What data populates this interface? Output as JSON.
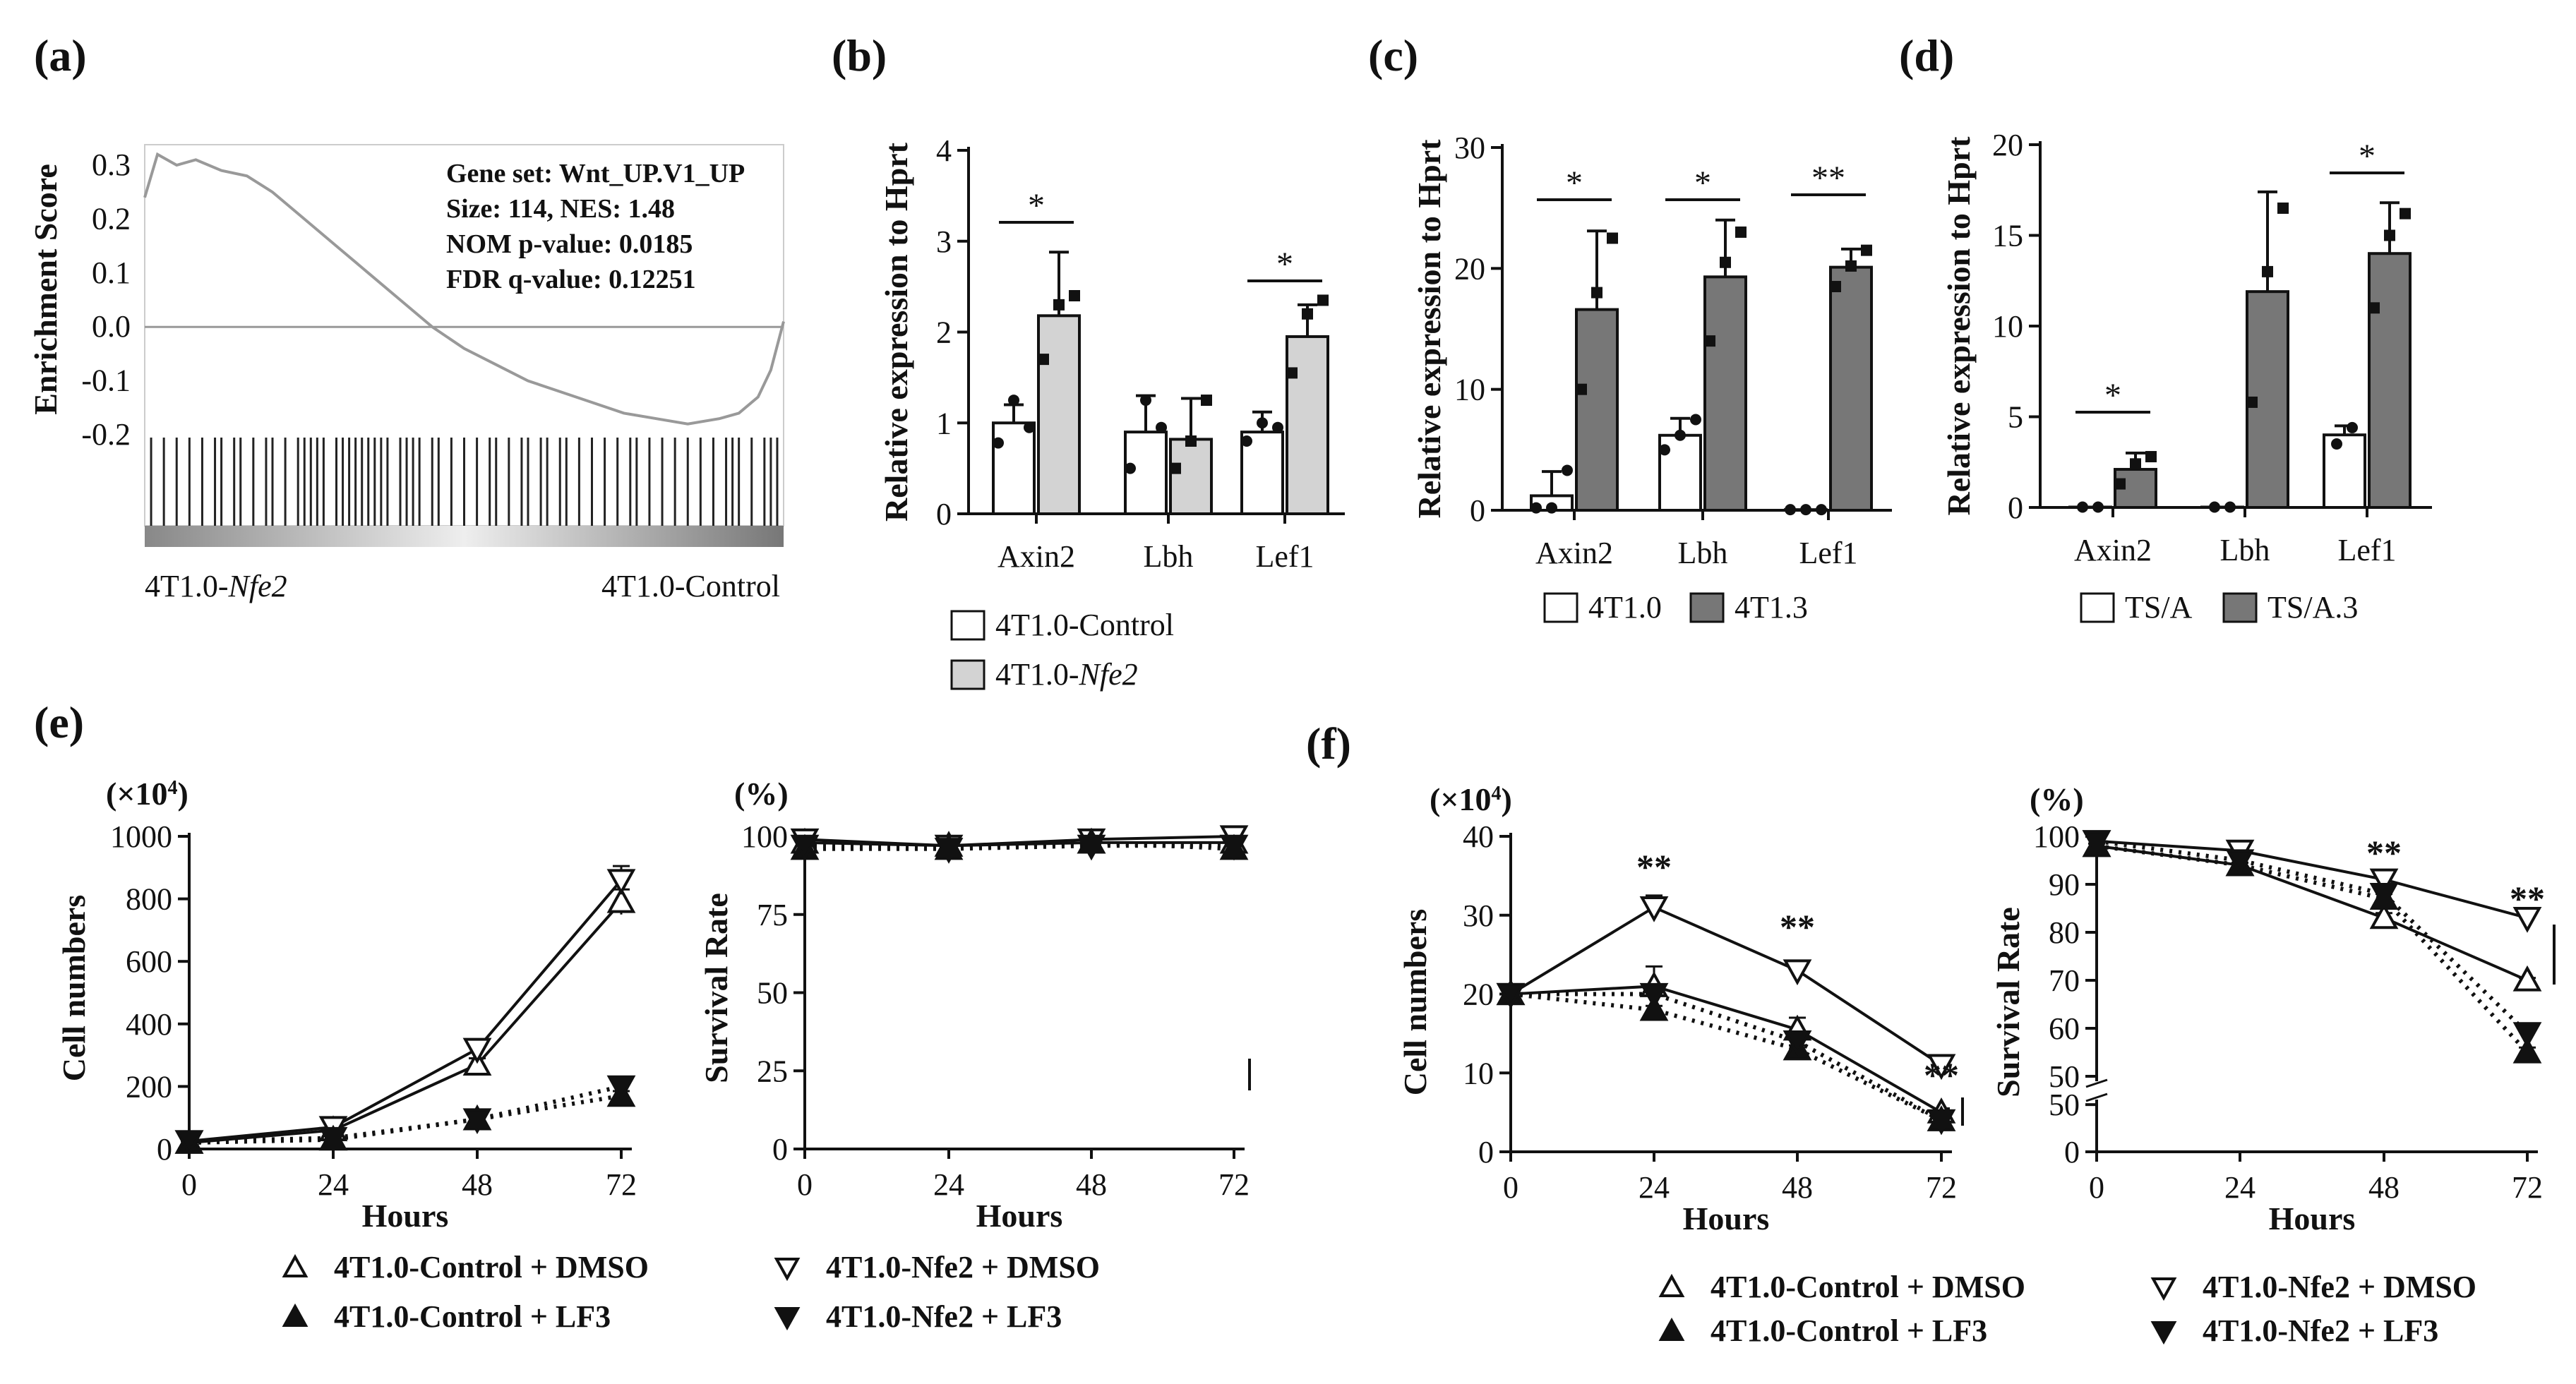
{
  "panels": {
    "a": "(a)",
    "b": "(b)",
    "c": "(c)",
    "d": "(d)",
    "e": "(e)",
    "f": "(f)"
  },
  "chart_data": [
    {
      "panel": "(a)",
      "type": "line",
      "ylabel": "Enrichment Score",
      "yticks": [
        "0.3",
        "0.2",
        "0.1",
        "0.0",
        "-0.1",
        "-0.2"
      ],
      "ylim": [
        -0.2,
        0.33
      ],
      "annotations": [
        "Gene set: Wnt_UP.V1_UP",
        "Size: 114, NES: 1.48",
        "NOM p-value: 0.0185",
        "FDR q-value: 0.12251"
      ],
      "left_label_prefix": "4T1.0-",
      "left_label_italic": "Nfe2",
      "right_label": "4T1.0-Control",
      "x": [
        0,
        0.02,
        0.05,
        0.08,
        0.12,
        0.16,
        0.2,
        0.25,
        0.3,
        0.35,
        0.4,
        0.45,
        0.5,
        0.55,
        0.6,
        0.65,
        0.7,
        0.75,
        0.8,
        0.85,
        0.9,
        0.93,
        0.96,
        0.98,
        1.0
      ],
      "y": [
        0.24,
        0.32,
        0.3,
        0.31,
        0.29,
        0.28,
        0.25,
        0.2,
        0.15,
        0.1,
        0.05,
        0.0,
        -0.04,
        -0.07,
        -0.1,
        -0.12,
        -0.14,
        -0.16,
        -0.17,
        -0.18,
        -0.17,
        -0.16,
        -0.13,
        -0.08,
        0.01
      ],
      "hits": [
        0.01,
        0.03,
        0.05,
        0.07,
        0.09,
        0.11,
        0.12,
        0.14,
        0.15,
        0.17,
        0.19,
        0.2,
        0.22,
        0.24,
        0.25,
        0.26,
        0.27,
        0.28,
        0.3,
        0.31,
        0.32,
        0.33,
        0.34,
        0.35,
        0.36,
        0.37,
        0.38,
        0.4,
        0.41,
        0.42,
        0.43,
        0.45,
        0.46,
        0.48,
        0.5,
        0.52,
        0.54,
        0.55,
        0.57,
        0.59,
        0.6,
        0.62,
        0.63,
        0.65,
        0.66,
        0.68,
        0.7,
        0.72,
        0.74,
        0.76,
        0.77,
        0.79,
        0.81,
        0.83,
        0.85,
        0.87,
        0.89,
        0.91,
        0.92,
        0.93,
        0.95,
        0.97,
        0.98,
        0.99
      ]
    },
    {
      "panel": "(b)",
      "type": "bar",
      "ylabel": "Relative expression to Hprt",
      "ylim": [
        0,
        4
      ],
      "yticks": [
        "0",
        "1",
        "2",
        "3",
        "4"
      ],
      "categories": [
        "Axin2",
        "Lbh",
        "Lef1"
      ],
      "series": [
        {
          "name": "4T1.0-Control",
          "values": [
            1.0,
            0.9,
            0.9
          ],
          "errors": [
            0.2,
            0.4,
            0.22
          ],
          "points": [
            [
              0.78,
              1.25,
              0.95
            ],
            [
              0.5,
              1.25,
              0.95
            ],
            [
              0.8,
              1.0,
              0.95
            ]
          ]
        },
        {
          "name": "4T1.0-",
          "name_italic": "Nfe2",
          "values": [
            2.18,
            0.82,
            1.95
          ],
          "errors": [
            0.7,
            0.45,
            0.35
          ],
          "points": [
            [
              1.7,
              2.3,
              2.4
            ],
            [
              0.5,
              0.8,
              1.25
            ],
            [
              1.55,
              2.2,
              2.35
            ]
          ]
        }
      ],
      "significance": [
        {
          "category": "Axin2",
          "label": "*"
        },
        {
          "category": "Lef1",
          "label": "*"
        }
      ]
    },
    {
      "panel": "(c)",
      "type": "bar",
      "ylabel": "Relative expression to Hprt",
      "ylim": [
        0,
        30
      ],
      "yticks": [
        "0",
        "10",
        "20",
        "30"
      ],
      "categories": [
        "Axin2",
        "Lbh",
        "Lef1"
      ],
      "series": [
        {
          "name": "4T1.0",
          "values": [
            1.2,
            6.2,
            0.05
          ],
          "errors": [
            2.0,
            1.4,
            0
          ],
          "points": [
            [
              0.2,
              0.2,
              3.3
            ],
            [
              5.0,
              6.2,
              7.5
            ],
            [
              0.05,
              0.05,
              0.05
            ]
          ]
        },
        {
          "name": "4T1.3",
          "values": [
            16.6,
            19.3,
            20.1
          ],
          "errors": [
            6.5,
            4.7,
            1.5
          ],
          "points": [
            [
              10.0,
              18.0,
              22.5
            ],
            [
              14.0,
              20.5,
              23.0
            ],
            [
              18.5,
              20.2,
              21.5
            ]
          ]
        }
      ],
      "significance": [
        {
          "category": "Axin2",
          "label": "*"
        },
        {
          "category": "Lbh",
          "label": "*"
        },
        {
          "category": "Lef1",
          "label": "**"
        }
      ]
    },
    {
      "panel": "(d)",
      "type": "bar",
      "ylabel": "Relative expression to Hprt",
      "ylim": [
        0,
        20
      ],
      "yticks": [
        "0",
        "5",
        "10",
        "15",
        "20"
      ],
      "categories": [
        "Axin2",
        "Lbh",
        "Lef1"
      ],
      "series": [
        {
          "name": "TS/A",
          "values": [
            0.02,
            0.02,
            4.0
          ],
          "errors": [
            0,
            0,
            0.5
          ],
          "points": [
            [
              0.02,
              0.02
            ],
            [
              0.02,
              0.02
            ],
            [
              3.5,
              4.4
            ]
          ]
        },
        {
          "name": "TS/A.3",
          "values": [
            2.1,
            11.9,
            14.0
          ],
          "errors": [
            0.9,
            5.5,
            2.8
          ],
          "points": [
            [
              1.3,
              2.4,
              2.8
            ],
            [
              5.8,
              13.0,
              16.5
            ],
            [
              11.0,
              15.0,
              16.2
            ]
          ]
        }
      ],
      "significance": [
        {
          "category": "Axin2",
          "label": "*"
        },
        {
          "category": "Lef1",
          "label": "*"
        }
      ]
    },
    {
      "panel": "(e) left",
      "type": "line",
      "ylabel": "Cell numbers",
      "yunit": "(×10",
      "yunit_exp": "4",
      "yunit_close": ")",
      "xlabel": "Hours",
      "x": [
        0,
        24,
        48,
        72
      ],
      "ylim": [
        0,
        1000
      ],
      "yticks": [
        "0",
        "200",
        "400",
        "600",
        "800",
        "1000"
      ],
      "xticks": [
        "0",
        "24",
        "48",
        "72"
      ],
      "series": [
        {
          "name": "4T1.0-Control + DMSO",
          "values": [
            20,
            60,
            270,
            790
          ],
          "errors": [
            5,
            10,
            20,
            40
          ]
        },
        {
          "name": "4T1.0-Nfe2 + DMSO",
          "values": [
            25,
            70,
            320,
            860
          ],
          "errors": [
            5,
            10,
            25,
            45
          ]
        },
        {
          "name": "4T1.0-Control + LF3",
          "values": [
            20,
            30,
            95,
            170
          ],
          "errors": [
            5,
            5,
            10,
            15
          ]
        },
        {
          "name": "4T1.0-Nfe2 + LF3",
          "values": [
            25,
            35,
            95,
            200
          ],
          "errors": [
            5,
            5,
            10,
            15
          ]
        }
      ]
    },
    {
      "panel": "(e) right",
      "type": "line",
      "ylabel": "Survival Rate",
      "yunit": "(%)",
      "xlabel": "Hours",
      "x": [
        0,
        24,
        48,
        72
      ],
      "ylim": [
        0,
        100
      ],
      "yticks": [
        "0",
        "25",
        "50",
        "75",
        "100"
      ],
      "xticks": [
        "0",
        "24",
        "48",
        "72"
      ],
      "series": [
        {
          "name": "4T1.0-Control + DMSO",
          "values": [
            98,
            97,
            98,
            98
          ],
          "errors": [
            1,
            1,
            1,
            1
          ]
        },
        {
          "name": "4T1.0-Nfe2 + DMSO",
          "values": [
            99,
            97,
            99,
            100
          ],
          "errors": [
            1,
            1,
            1,
            1
          ]
        },
        {
          "name": "4T1.0-Control + LF3",
          "values": [
            96,
            96,
            98,
            96
          ],
          "errors": [
            1,
            1,
            1,
            1
          ]
        },
        {
          "name": "4T1.0-Nfe2 + LF3",
          "values": [
            97,
            96,
            97,
            97
          ],
          "errors": [
            1,
            1,
            1,
            1
          ]
        }
      ]
    },
    {
      "panel": "(f) left",
      "type": "line",
      "ylabel": "Cell numbers",
      "yunit": "(×10",
      "yunit_exp": "4",
      "yunit_close": ")",
      "xlabel": "Hours",
      "x": [
        0,
        24,
        48,
        72
      ],
      "ylim": [
        0,
        40
      ],
      "yticks": [
        "0",
        "10",
        "20",
        "30",
        "40"
      ],
      "xticks": [
        "0",
        "24",
        "48",
        "72"
      ],
      "series": [
        {
          "name": "4T1.0-Control + DMSO",
          "values": [
            20,
            21,
            15.5,
            5
          ],
          "errors": [
            0.5,
            2.5,
            1.5,
            0.5
          ]
        },
        {
          "name": "4T1.0-Nfe2 + DMSO",
          "values": [
            20,
            31,
            23,
            11
          ],
          "errors": [
            0.5,
            1.5,
            0.5,
            0.5
          ]
        },
        {
          "name": "4T1.0-Control + LF3",
          "values": [
            20,
            18,
            13,
            4
          ],
          "errors": [
            0.5,
            0.5,
            0.5,
            0.5
          ]
        },
        {
          "name": "4T1.0-Nfe2 + LF3",
          "values": [
            20,
            20,
            14,
            4
          ],
          "errors": [
            0.5,
            0.5,
            0.5,
            0.5
          ]
        }
      ],
      "significance": [
        "**",
        "**",
        "**"
      ]
    },
    {
      "panel": "(f) right",
      "type": "line",
      "ylabel": "Survival Rate",
      "yunit": "(%)",
      "xlabel": "Hours",
      "x": [
        0,
        24,
        48,
        72
      ],
      "ylim_upper": [
        50,
        100
      ],
      "ylim_lower": [
        0,
        50
      ],
      "yticks_upper": [
        "50",
        "60",
        "70",
        "80",
        "90",
        "100"
      ],
      "yticks_lower": [
        "0",
        "50"
      ],
      "xticks": [
        "0",
        "24",
        "48",
        "72"
      ],
      "series": [
        {
          "name": "4T1.0-Control + DMSO",
          "values": [
            98,
            94,
            83,
            70
          ],
          "errors": [
            0.5,
            0.5,
            1,
            0.5
          ]
        },
        {
          "name": "4T1.0-Nfe2 + DMSO",
          "values": [
            99,
            97,
            91,
            83
          ],
          "errors": [
            0.5,
            0.5,
            1,
            0.5
          ]
        },
        {
          "name": "4T1.0-Control + LF3",
          "values": [
            98,
            94,
            87,
            55
          ],
          "errors": [
            0.5,
            0.5,
            1,
            1
          ]
        },
        {
          "name": "4T1.0-Nfe2 + LF3",
          "values": [
            99,
            95,
            88,
            59
          ],
          "errors": [
            0.5,
            0.5,
            1,
            1
          ]
        }
      ],
      "significance": [
        "**",
        "**"
      ]
    }
  ],
  "legends": {
    "ef": {
      "control_dmso": "4T1.0-Control + DMSO",
      "nfe2_dmso": "4T1.0-Nfe2 + DMSO",
      "control_lf3": "4T1.0-Control + LF3",
      "nfe2_lf3": "4T1.0-Nfe2 + LF3"
    }
  }
}
